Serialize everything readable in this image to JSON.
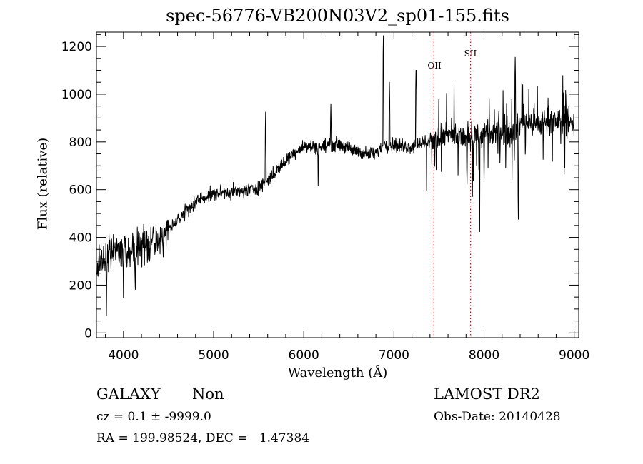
{
  "chart_data": {
    "type": "line",
    "title": "spec-56776-VB200N03V2_sp01-155.fits",
    "xlabel": "Wavelength (Å)",
    "ylabel": "Flux (relative)",
    "xlim": [
      3700,
      9050
    ],
    "ylim": [
      -20,
      1260
    ],
    "xticks": [
      4000,
      5000,
      6000,
      7000,
      8000,
      9000
    ],
    "yticks": [
      0,
      200,
      400,
      600,
      800,
      1000,
      1200
    ],
    "series_color": "#000000",
    "line_color": "#ff0000",
    "lines": [
      {
        "label": "OII",
        "x": 7444
      },
      {
        "label": "SII",
        "x": 7850
      }
    ],
    "continuum": {
      "x": [
        3740,
        3800,
        3900,
        4000,
        4100,
        4200,
        4300,
        4400,
        4500,
        4600,
        4700,
        4800,
        4900,
        5000,
        5100,
        5200,
        5300,
        5400,
        5500,
        5600,
        5700,
        5800,
        5900,
        6000,
        6100,
        6200,
        6300,
        6400,
        6500,
        6600,
        6700,
        6800,
        6900,
        7000,
        7100,
        7200,
        7300,
        7400,
        7500,
        7600,
        7700,
        7800,
        7900,
        8000,
        8100,
        8200,
        8300,
        8400,
        8500,
        8600,
        8700,
        8800,
        8900,
        9000
      ],
      "y": [
        300,
        320,
        340,
        340,
        340,
        360,
        380,
        400,
        440,
        470,
        510,
        550,
        570,
        580,
        590,
        590,
        590,
        600,
        610,
        640,
        680,
        720,
        760,
        780,
        780,
        780,
        790,
        790,
        770,
        760,
        750,
        750,
        790,
        790,
        780,
        780,
        800,
        800,
        820,
        830,
        820,
        820,
        830,
        830,
        830,
        850,
        840,
        870,
        880,
        870,
        900,
        890,
        880,
        880
      ]
    },
    "emission_features": [
      {
        "x": 5577,
        "y": 930
      },
      {
        "x": 6300,
        "y": 970
      },
      {
        "x": 6883,
        "y": 1250
      },
      {
        "x": 6950,
        "y": 1050
      },
      {
        "x": 7246,
        "y": 1140
      },
      {
        "x": 8345,
        "y": 1160
      },
      {
        "x": 8430,
        "y": 1080
      },
      {
        "x": 8920,
        "y": 1050
      }
    ],
    "absorption_features": [
      {
        "x": 3810,
        "y": 40
      },
      {
        "x": 4000,
        "y": 130
      },
      {
        "x": 4130,
        "y": 150
      },
      {
        "x": 6160,
        "y": 600
      },
      {
        "x": 7470,
        "y": 620
      },
      {
        "x": 7810,
        "y": 590
      },
      {
        "x": 7880,
        "y": 590
      },
      {
        "x": 7950,
        "y": 360
      },
      {
        "x": 8380,
        "y": 460
      },
      {
        "x": 8000,
        "y": 620
      },
      {
        "x": 8850,
        "y": 760
      }
    ]
  },
  "info": {
    "object_class": "GALAXY",
    "object_subclass": "Non",
    "survey": "LAMOST DR2",
    "cz": "cz = 0.1 ± -9999.0",
    "obs_date": "Obs-Date: 20140428",
    "radec": "RA = 199.98524, DEC =   1.47384"
  }
}
